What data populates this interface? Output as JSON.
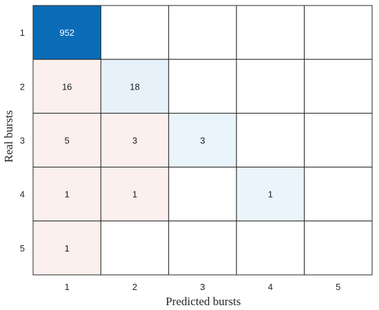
{
  "chart_data": {
    "type": "heatmap",
    "title": "",
    "xlabel": "Predicted bursts",
    "ylabel": "Real bursts",
    "x_categories": [
      "1",
      "2",
      "3",
      "4",
      "5"
    ],
    "y_categories": [
      "1",
      "2",
      "3",
      "4",
      "5"
    ],
    "values": [
      [
        952,
        null,
        null,
        null,
        null
      ],
      [
        16,
        18,
        null,
        null,
        null
      ],
      [
        5,
        3,
        3,
        null,
        null
      ],
      [
        1,
        1,
        null,
        1,
        null
      ],
      [
        1,
        null,
        null,
        null,
        null
      ]
    ],
    "colors": {
      "diagonal_max": "#0b6cb8",
      "diagonal_low": "#eaf4fb",
      "off_diagonal": "#fcf0ee",
      "empty": "#ffffff",
      "grid": "#262626",
      "label_on_dark": "#ffffff",
      "label_on_light": "#1a1a1a"
    }
  }
}
